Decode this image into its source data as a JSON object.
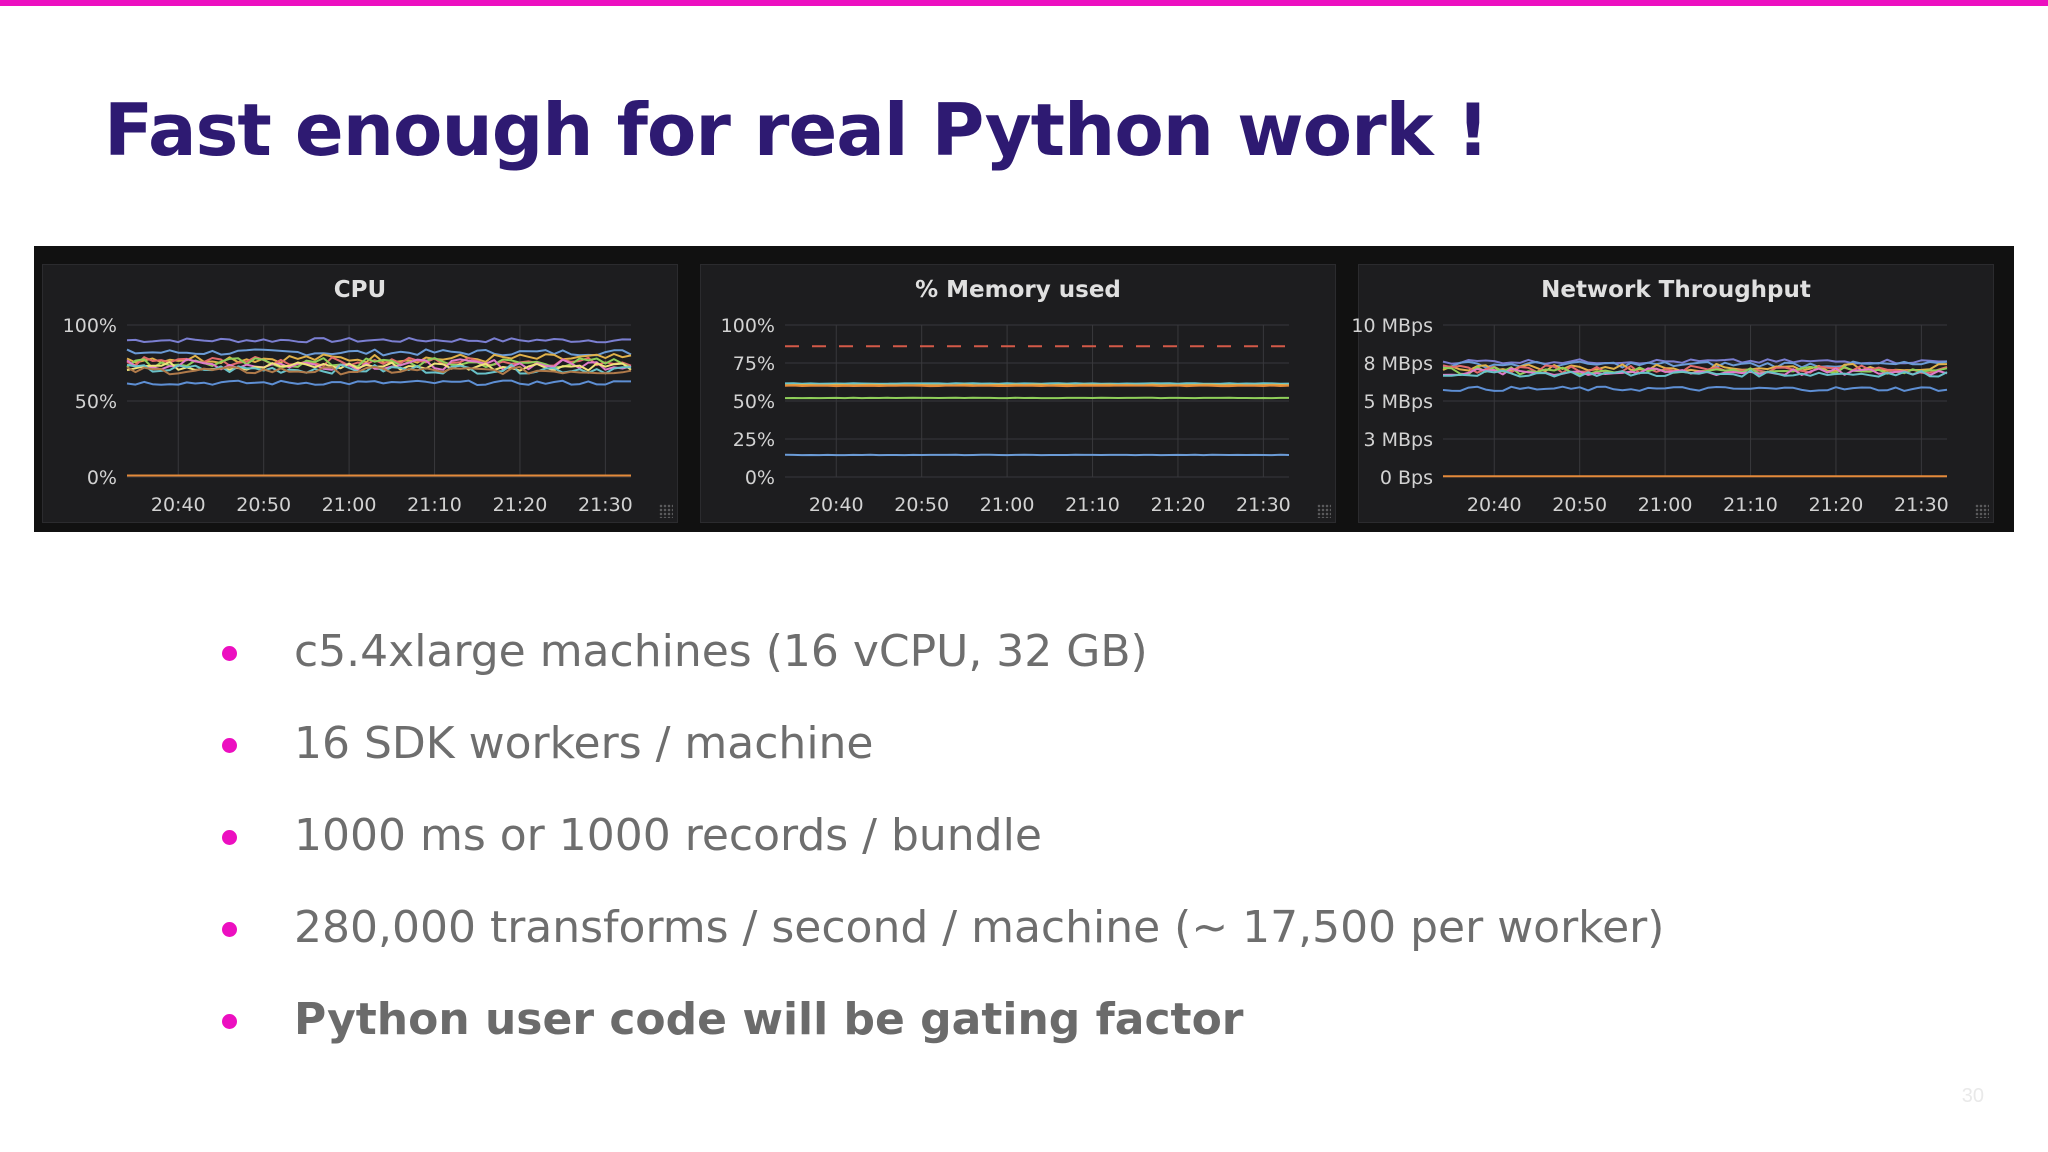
{
  "slide": {
    "title": "Fast enough for real Python work !",
    "page_number": "30",
    "accent_color": "#ec0fc0",
    "title_color": "#2e1a72"
  },
  "bullets": [
    {
      "text": "c5.4xlarge machines (16 vCPU, 32 GB)",
      "bold": false
    },
    {
      "text": "16 SDK workers / machine",
      "bold": false
    },
    {
      "text": "1000 ms or 1000 records / bundle",
      "bold": false
    },
    {
      "text": "280,000 transforms / second / machine (~ 17,500 per worker)",
      "bold": false
    },
    {
      "text": "Python user code will be gating factor",
      "bold": true
    }
  ],
  "chart_data": [
    {
      "type": "line",
      "title": "CPU",
      "x_ticks": [
        "20:40",
        "20:50",
        "21:00",
        "21:10",
        "21:20",
        "21:30"
      ],
      "y_ticks": [
        "100%",
        "50%",
        "0%"
      ],
      "ylim": [
        0,
        100
      ],
      "xlim": [
        "20:34",
        "21:33"
      ],
      "grid": true,
      "series": [
        {
          "color": "#7b7fd1",
          "level": 90,
          "noise": 1.5
        },
        {
          "color": "#6b9bd6",
          "level": 82,
          "noise": 2.0
        },
        {
          "color": "#e0b14a",
          "level": 78,
          "noise": 3.0
        },
        {
          "color": "#e36b6b",
          "level": 76,
          "noise": 3.0
        },
        {
          "color": "#8fcf5a",
          "level": 75,
          "noise": 3.5
        },
        {
          "color": "#e07ac9",
          "level": 74,
          "noise": 3.5
        },
        {
          "color": "#f0e27a",
          "level": 73,
          "noise": 3.0
        },
        {
          "color": "#69c2c9",
          "level": 71,
          "noise": 3.0
        },
        {
          "color": "#b07a4a",
          "level": 70,
          "noise": 2.5
        },
        {
          "color": "#5e8fd4",
          "level": 62,
          "noise": 1.5
        },
        {
          "color": "#e48a3a",
          "level": 1,
          "noise": 0
        }
      ]
    },
    {
      "type": "line",
      "title": "% Memory used",
      "x_ticks": [
        "20:40",
        "20:50",
        "21:00",
        "21:10",
        "21:20",
        "21:30"
      ],
      "y_ticks": [
        "100%",
        "75%",
        "50%",
        "25%",
        "0%"
      ],
      "ylim": [
        0,
        100
      ],
      "xlim": [
        "20:34",
        "21:33"
      ],
      "grid": true,
      "threshold": {
        "value": 86,
        "color": "#d45a48",
        "dashed": true
      },
      "series": [
        {
          "color": "#69c2c9",
          "level": 61.5,
          "noise": 0.2
        },
        {
          "color": "#e0b14a",
          "level": 60.5,
          "noise": 0.2
        },
        {
          "color": "#e48a3a",
          "level": 60,
          "noise": 0.2
        },
        {
          "color": "#8fcf5a",
          "level": 52,
          "noise": 0.1
        },
        {
          "color": "#6b9bd6",
          "level": 14.5,
          "noise": 0.1
        }
      ]
    },
    {
      "type": "line",
      "title": "Network Throughput",
      "x_ticks": [
        "20:40",
        "20:50",
        "21:00",
        "21:10",
        "21:20",
        "21:30"
      ],
      "y_ticks": [
        "10 MBps",
        "8 MBps",
        "5 MBps",
        "3 MBps",
        "0 Bps"
      ],
      "ylim": [
        0,
        10
      ],
      "xlim": [
        "20:34",
        "21:33"
      ],
      "grid": true,
      "series": [
        {
          "color": "#7b7fd1",
          "level": 7.6,
          "noise": 0.15
        },
        {
          "color": "#6b9bd6",
          "level": 7.4,
          "noise": 0.2
        },
        {
          "color": "#e0b14a",
          "level": 7.2,
          "noise": 0.25
        },
        {
          "color": "#e36b6b",
          "level": 7.1,
          "noise": 0.25
        },
        {
          "color": "#8fcf5a",
          "level": 7.0,
          "noise": 0.25
        },
        {
          "color": "#e07ac9",
          "level": 6.9,
          "noise": 0.25
        },
        {
          "color": "#69c2c9",
          "level": 6.8,
          "noise": 0.2
        },
        {
          "color": "#5e8fd4",
          "level": 5.8,
          "noise": 0.15
        },
        {
          "color": "#e48a3a",
          "level": 0.05,
          "noise": 0
        }
      ]
    }
  ]
}
